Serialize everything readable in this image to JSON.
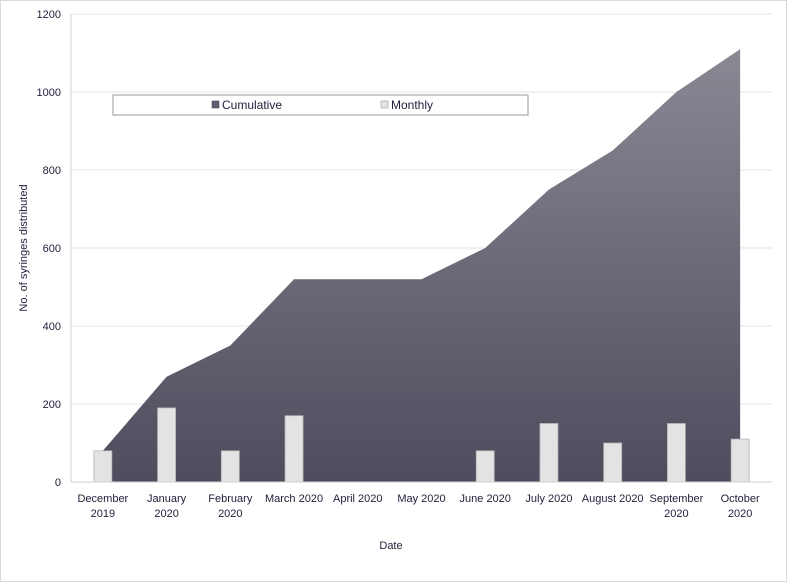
{
  "chart_data": {
    "type": "area",
    "xlabel": "Date",
    "ylabel": "No. of syringes distributed",
    "ylim": [
      0,
      1200
    ],
    "yticks": [
      0,
      200,
      400,
      600,
      800,
      1000,
      1200
    ],
    "grid": true,
    "legend_position": "top",
    "categories": [
      [
        "December",
        "2019"
      ],
      [
        "January",
        "2020"
      ],
      [
        "February",
        "2020"
      ],
      [
        "March 2020"
      ],
      [
        "April 2020"
      ],
      [
        "May 2020"
      ],
      [
        "June 2020"
      ],
      [
        "July 2020"
      ],
      [
        "August 2020"
      ],
      [
        "September",
        "2020"
      ],
      [
        "October",
        "2020"
      ]
    ],
    "series": [
      {
        "name": "Cumulative",
        "type": "area",
        "color": "#5f5d6e",
        "values": [
          80,
          270,
          350,
          520,
          520,
          520,
          600,
          750,
          850,
          1000,
          1110
        ]
      },
      {
        "name": "Monthly",
        "type": "bar",
        "color": "#e3e3e3",
        "values": [
          80,
          190,
          80,
          170,
          0,
          0,
          80,
          150,
          100,
          150,
          110
        ]
      }
    ]
  }
}
